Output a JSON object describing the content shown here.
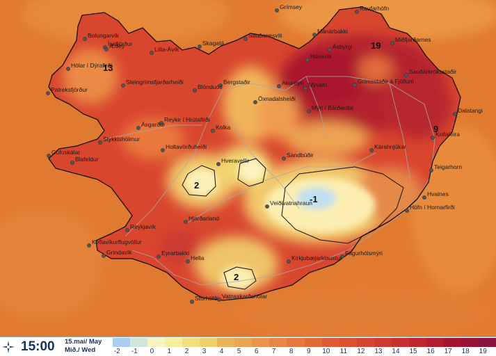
{
  "colors": {
    "sea": "#e07a30",
    "land_warm": "#d9462e",
    "land_hot": "#b0202e",
    "land_mild": "#ea8a45",
    "cool_yellow": "#f2d36a",
    "pale": "#fbf1b8",
    "cold_blue": "#bfdff0",
    "coast": "#111111",
    "roads": "#a8a8a8",
    "time_text": "#13305e"
  },
  "map": {
    "places": [
      "Grímsey",
      "Raufarhöfn",
      "Bolungarvík",
      "Ísafjörður",
      "Æðey",
      "Hólar í Dýrafirði",
      "Patreksfjörður",
      "Litla-Ávík",
      "Skagatá",
      "Sauðanesviti",
      "Mánárbakki",
      "Ásbyrgi",
      "Miðfjarðarnes",
      "Húsavík",
      "Steingrímsfjarðarheiði",
      "Blönduós",
      "Bergstaðir",
      "Akureyri",
      "Mývatn",
      "Grímsstaðir á Fjöllum",
      "Sauðárkróksstaðir",
      "Öxnadalsheiði",
      "Mýri í Bárðardal",
      "Dalatangi",
      "Ásgarður",
      "Reykir í Hrútafirði",
      "Kolka",
      "Kollaleira",
      "Stykkishólmur",
      "Gufuskálar",
      "Blafeldur",
      "Holtavörðuheiði",
      "Hveravellir",
      "Sandbúðir",
      "Kárahnjúkar",
      "Teigarhorn",
      "Hvalnes",
      "Veiðivatnahraun",
      "Höfn í Hornarfirði",
      "Reykjavík",
      "Hjarðarland",
      "Keflavíkurflugvöllur",
      "Grindavík",
      "Eyrarbakki",
      "Hella",
      "Fagurhólsmýri",
      "Kirkjubæjarklaustur",
      "Vatnsskarðshólar",
      "Stórhöfði"
    ],
    "temperature_labels": [
      "19",
      "13",
      "9",
      "2",
      "-1",
      "2"
    ]
  },
  "footer": {
    "time": "15:00",
    "date_line1": "15.maí/ May",
    "date_line2": "Mið./ Wed",
    "scale_labels": [
      "-2",
      "-1",
      "0",
      "1",
      "2",
      "3",
      "4",
      "5",
      "6",
      "7",
      "8",
      "9",
      "10",
      "11",
      "12",
      "13",
      "14",
      "15",
      "16",
      "17",
      "18",
      "19"
    ],
    "scale_colors": [
      "#a8cdef",
      "#cfe6dc",
      "#f7f5c4",
      "#f8ee9e",
      "#f3df80",
      "#efd070",
      "#e8b55c",
      "#e9a555",
      "#ea9450",
      "#e8854a",
      "#e47840",
      "#e06a38",
      "#dd5c35",
      "#d95032",
      "#d44532",
      "#cf3a30",
      "#c8302f",
      "#bf262f",
      "#b21e30",
      "#a3162f",
      "#951334",
      "#8a1240"
    ]
  }
}
